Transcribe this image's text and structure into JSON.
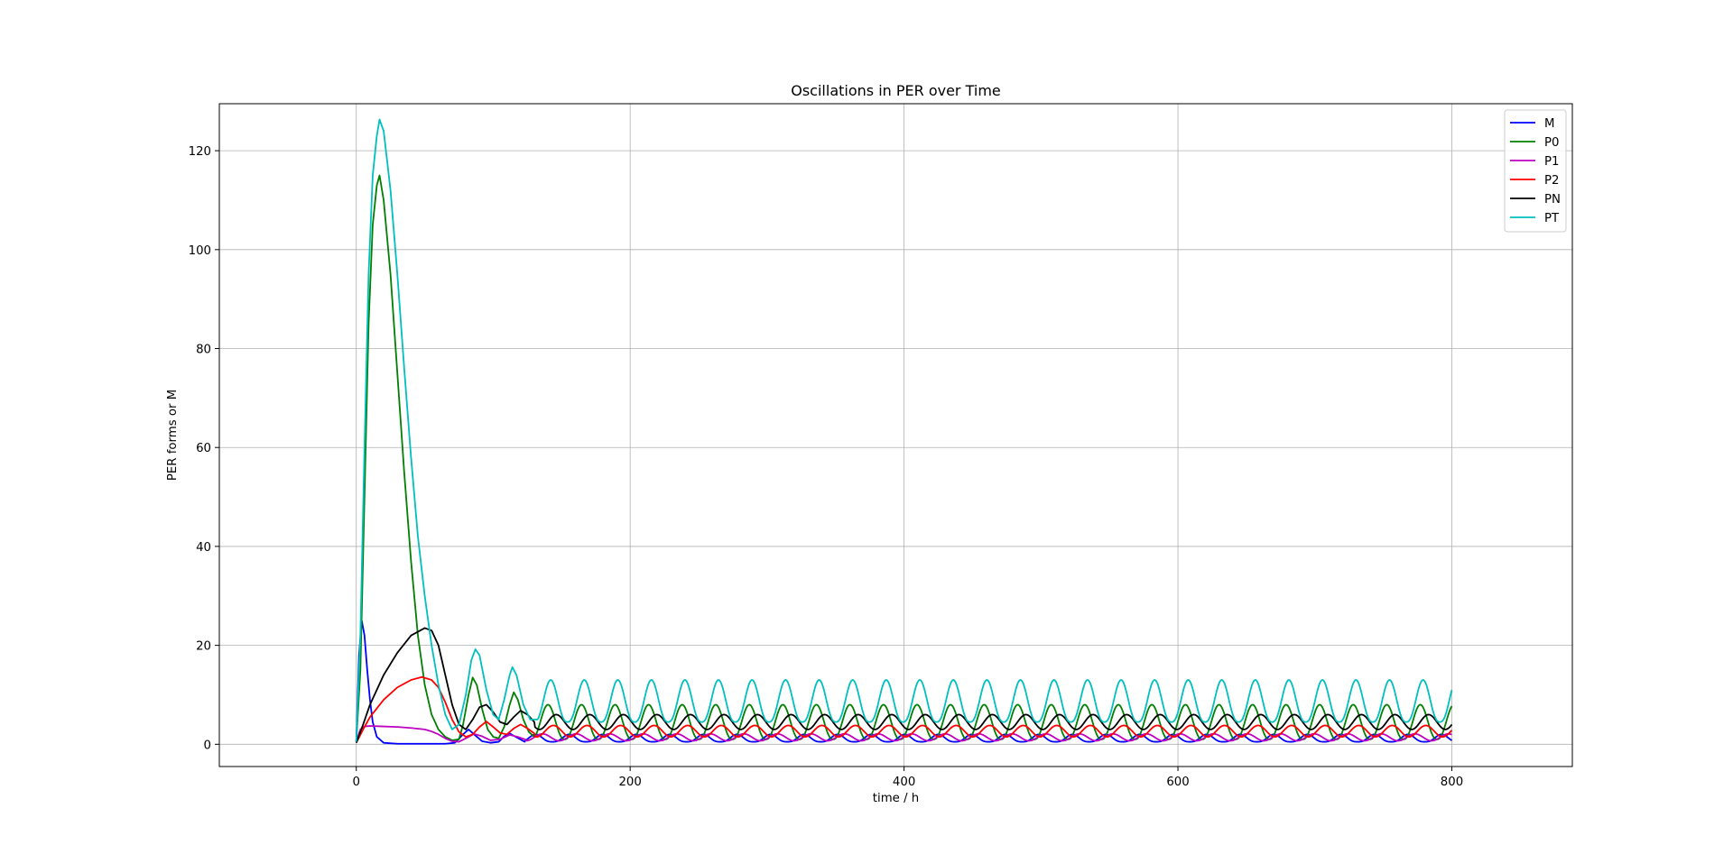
{
  "chart_data": {
    "type": "line",
    "title": "Oscillations in PER over Time",
    "xlabel": "time / h",
    "ylabel": "PER forms or M",
    "xlim": [
      -100,
      888
    ],
    "ylim": [
      -4.5,
      129.5
    ],
    "xticks": [
      0,
      200,
      400,
      600,
      800
    ],
    "yticks": [
      0,
      20,
      40,
      60,
      80,
      100,
      120
    ],
    "grid": true,
    "legend": "top-right",
    "series": [
      {
        "name": "M",
        "color": "#0000ff",
        "points": [
          [
            0,
            0.5
          ],
          [
            2,
            18
          ],
          [
            4,
            25
          ],
          [
            6,
            22
          ],
          [
            8,
            15
          ],
          [
            10,
            9
          ],
          [
            12,
            4.5
          ],
          [
            15,
            1.5
          ],
          [
            20,
            0.3
          ],
          [
            30,
            0.1
          ],
          [
            50,
            0.1
          ],
          [
            65,
            0.1
          ],
          [
            72,
            0.3
          ],
          [
            78,
            2
          ],
          [
            82,
            3
          ],
          [
            86,
            2
          ],
          [
            92,
            0.6
          ],
          [
            98,
            0.3
          ],
          [
            104,
            0.5
          ],
          [
            108,
            1.6
          ],
          [
            112,
            2.2
          ],
          [
            117,
            1.4
          ],
          [
            123,
            0.5
          ]
        ],
        "periodic": {
          "from": 123,
          "to": 800,
          "period": 24.5,
          "base": 0.5,
          "amp": 1.5,
          "shape": 1.5,
          "offset": 8
        }
      },
      {
        "name": "P0",
        "color": "#008000",
        "points": [
          [
            0,
            0.5
          ],
          [
            3,
            15
          ],
          [
            6,
            50
          ],
          [
            9,
            85
          ],
          [
            12,
            105
          ],
          [
            15,
            113
          ],
          [
            17,
            115
          ],
          [
            20,
            110
          ],
          [
            25,
            95
          ],
          [
            30,
            75
          ],
          [
            35,
            55
          ],
          [
            40,
            37
          ],
          [
            45,
            22
          ],
          [
            50,
            12
          ],
          [
            55,
            6
          ],
          [
            60,
            3
          ],
          [
            65,
            1.5
          ],
          [
            70,
            0.8
          ],
          [
            75,
            1
          ],
          [
            78,
            4
          ],
          [
            82,
            10
          ],
          [
            85,
            13.5
          ],
          [
            88,
            12
          ],
          [
            92,
            7
          ],
          [
            96,
            3
          ],
          [
            100,
            1.5
          ],
          [
            104,
            1.2
          ],
          [
            108,
            3.5
          ],
          [
            112,
            8
          ],
          [
            115,
            10.5
          ],
          [
            118,
            9
          ],
          [
            122,
            5
          ],
          [
            126,
            2.5
          ],
          [
            130,
            1.5
          ]
        ],
        "periodic": {
          "from": 130,
          "to": 800,
          "period": 24.5,
          "base": 1.0,
          "amp": 7.0,
          "shape": 1.2,
          "offset": 10
        }
      },
      {
        "name": "P1",
        "color": "#c000c0",
        "points": [
          [
            0,
            0.5
          ],
          [
            3,
            3
          ],
          [
            6,
            3.6
          ],
          [
            10,
            3.7
          ],
          [
            20,
            3.6
          ],
          [
            30,
            3.5
          ],
          [
            40,
            3.3
          ],
          [
            50,
            3
          ],
          [
            55,
            2.6
          ],
          [
            60,
            2
          ],
          [
            65,
            1.2
          ],
          [
            70,
            0.6
          ],
          [
            75,
            0.5
          ],
          [
            80,
            1.2
          ],
          [
            86,
            2.1
          ],
          [
            92,
            1.6
          ],
          [
            98,
            0.8
          ],
          [
            105,
            1
          ],
          [
            112,
            1.9
          ],
          [
            118,
            1.5
          ],
          [
            124,
            0.9
          ]
        ],
        "periodic": {
          "from": 124,
          "to": 800,
          "period": 24.5,
          "base": 0.7,
          "amp": 1.4,
          "shape": 1.0,
          "offset": 12
        }
      },
      {
        "name": "P2",
        "color": "#ff0000",
        "points": [
          [
            0,
            0.3
          ],
          [
            5,
            3
          ],
          [
            10,
            5.5
          ],
          [
            20,
            9
          ],
          [
            30,
            11.5
          ],
          [
            40,
            13
          ],
          [
            48,
            13.6
          ],
          [
            55,
            13
          ],
          [
            60,
            11.5
          ],
          [
            65,
            8.5
          ],
          [
            70,
            5
          ],
          [
            75,
            2.5
          ],
          [
            80,
            1.5
          ],
          [
            85,
            2
          ],
          [
            90,
            3.5
          ],
          [
            95,
            4.6
          ],
          [
            100,
            3.5
          ],
          [
            105,
            2.3
          ],
          [
            110,
            2
          ],
          [
            115,
            3.2
          ],
          [
            120,
            4
          ],
          [
            125,
            3.2
          ],
          [
            130,
            2.2
          ]
        ],
        "periodic": {
          "from": 130,
          "to": 800,
          "period": 24.5,
          "base": 1.5,
          "amp": 2.3,
          "shape": 1.0,
          "offset": 14
        }
      },
      {
        "name": "PN",
        "color": "#000000",
        "points": [
          [
            0,
            0.3
          ],
          [
            5,
            4
          ],
          [
            10,
            8
          ],
          [
            20,
            14
          ],
          [
            30,
            18.5
          ],
          [
            40,
            22
          ],
          [
            50,
            23.5
          ],
          [
            55,
            23
          ],
          [
            60,
            20
          ],
          [
            65,
            14
          ],
          [
            70,
            8
          ],
          [
            75,
            4
          ],
          [
            80,
            3
          ],
          [
            85,
            5
          ],
          [
            90,
            7.5
          ],
          [
            95,
            8
          ],
          [
            100,
            6.5
          ],
          [
            105,
            4.5
          ],
          [
            110,
            4
          ],
          [
            115,
            5.5
          ],
          [
            120,
            6.8
          ],
          [
            125,
            6
          ],
          [
            130,
            4.5
          ]
        ],
        "periodic": {
          "from": 130,
          "to": 800,
          "period": 24.5,
          "base": 3.0,
          "amp": 3.0,
          "shape": 1.0,
          "offset": 16
        }
      },
      {
        "name": "PT",
        "color": "#00bfbf",
        "points": [
          [
            0,
            0.5
          ],
          [
            3,
            22
          ],
          [
            6,
            60
          ],
          [
            9,
            95
          ],
          [
            12,
            115
          ],
          [
            15,
            123
          ],
          [
            17,
            126.3
          ],
          [
            20,
            124
          ],
          [
            25,
            112
          ],
          [
            30,
            95
          ],
          [
            35,
            76
          ],
          [
            40,
            58
          ],
          [
            45,
            42
          ],
          [
            50,
            30
          ],
          [
            55,
            20
          ],
          [
            60,
            12
          ],
          [
            65,
            6
          ],
          [
            70,
            3
          ],
          [
            75,
            4
          ],
          [
            80,
            10
          ],
          [
            84,
            17
          ],
          [
            87,
            19.2
          ],
          [
            90,
            18
          ],
          [
            95,
            11
          ],
          [
            100,
            6
          ],
          [
            104,
            5
          ],
          [
            108,
            9
          ],
          [
            112,
            14
          ],
          [
            114,
            15.6
          ],
          [
            117,
            14
          ],
          [
            122,
            8
          ],
          [
            127,
            5
          ],
          [
            132,
            5
          ]
        ],
        "periodic": {
          "from": 132,
          "to": 800,
          "period": 24.5,
          "base": 4.5,
          "amp": 8.5,
          "shape": 1.3,
          "offset": 10
        }
      }
    ]
  }
}
